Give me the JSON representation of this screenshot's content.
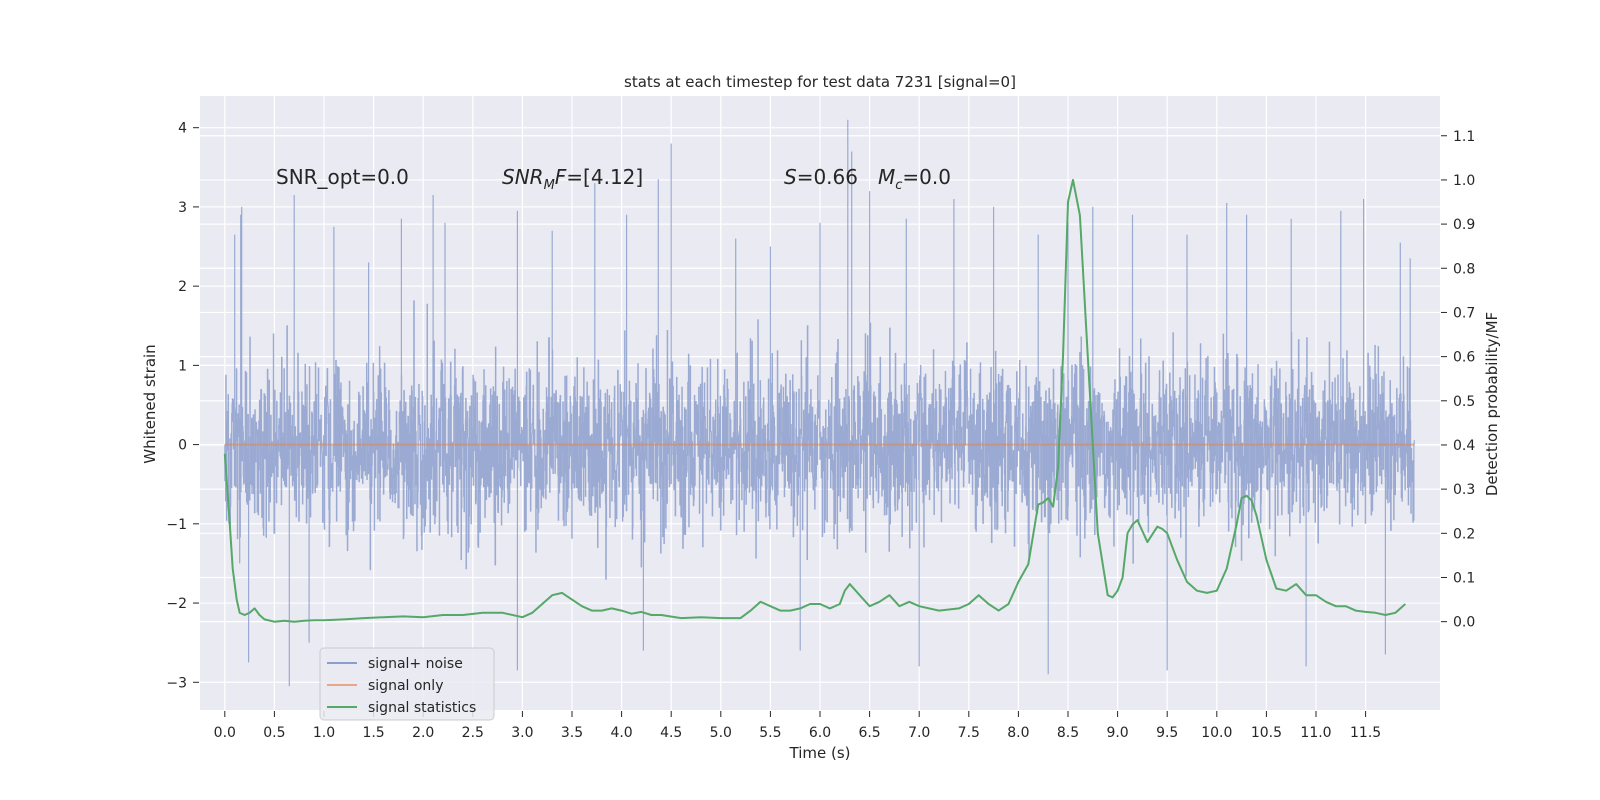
{
  "chart_data": {
    "type": "line",
    "title": "stats at each timestep for test data 7231 [signal=0]",
    "xlabel": "Time (s)",
    "ylabel": "Whitened strain",
    "y2label": "Detection probability/MF",
    "xlim": [
      -0.25,
      12.25
    ],
    "ylim": [
      -3.35,
      4.4
    ],
    "y2lim": [
      -0.2,
      1.19
    ],
    "x_ticks": [
      "0.0",
      "0.5",
      "1.0",
      "1.5",
      "2.0",
      "2.5",
      "3.0",
      "3.5",
      "4.0",
      "4.5",
      "5.0",
      "5.5",
      "6.0",
      "6.5",
      "7.0",
      "7.5",
      "8.0",
      "8.5",
      "9.0",
      "9.5",
      "10.0",
      "10.5",
      "11.0",
      "11.5"
    ],
    "y_ticks": [
      "4",
      "3",
      "2",
      "1",
      "0",
      "−1",
      "−2",
      "−3"
    ],
    "y2_ticks": [
      "1.1",
      "1.0",
      "0.9",
      "0.8",
      "0.7",
      "0.6",
      "0.5",
      "0.4",
      "0.3",
      "0.2",
      "0.1",
      "0.0"
    ],
    "grid": true,
    "legend_position": "bottom-left",
    "annotations": {
      "snr_opt": "SNR_opt=0.0",
      "snr_mf_base": "SNR",
      "snr_mf_sub": "M",
      "snr_mf_tail": "F=[4.12]",
      "s_base": "S",
      "s_tail": "=0.66",
      "mc_base": "M",
      "mc_sub": "c",
      "mc_tail": "=0.0"
    },
    "noise_series": {
      "name": "signal+ noise",
      "color": "#8c9fcc",
      "x_range": [
        0,
        11.99
      ],
      "typical_range": [
        -1.6,
        1.6
      ],
      "peaks": [
        {
          "x": 0.1,
          "y": 2.65
        },
        {
          "x": 0.15,
          "y": -1.5
        },
        {
          "x": 0.16,
          "y": 2.9
        },
        {
          "x": 0.17,
          "y": 3.0
        },
        {
          "x": 0.24,
          "y": -2.75
        },
        {
          "x": 0.65,
          "y": -3.05
        },
        {
          "x": 0.7,
          "y": 3.15
        },
        {
          "x": 0.85,
          "y": -2.5
        },
        {
          "x": 1.1,
          "y": 2.75
        },
        {
          "x": 1.45,
          "y": 2.3
        },
        {
          "x": 1.78,
          "y": 2.85
        },
        {
          "x": 2.1,
          "y": 3.15
        },
        {
          "x": 2.22,
          "y": 2.8
        },
        {
          "x": 2.95,
          "y": 2.95
        },
        {
          "x": 2.95,
          "y": -2.85
        },
        {
          "x": 3.3,
          "y": 2.7
        },
        {
          "x": 3.73,
          "y": 3.3
        },
        {
          "x": 4.05,
          "y": 2.9
        },
        {
          "x": 4.22,
          "y": -2.6
        },
        {
          "x": 4.37,
          "y": 3.35
        },
        {
          "x": 4.5,
          "y": 3.8
        },
        {
          "x": 5.15,
          "y": 2.6
        },
        {
          "x": 5.5,
          "y": 2.5
        },
        {
          "x": 5.8,
          "y": -2.6
        },
        {
          "x": 6.0,
          "y": 2.8
        },
        {
          "x": 6.28,
          "y": 4.1
        },
        {
          "x": 6.32,
          "y": 3.7
        },
        {
          "x": 6.5,
          "y": 3.2
        },
        {
          "x": 6.87,
          "y": 2.85
        },
        {
          "x": 7.0,
          "y": -2.8
        },
        {
          "x": 7.35,
          "y": 3.1
        },
        {
          "x": 7.75,
          "y": 3.0
        },
        {
          "x": 8.2,
          "y": 2.65
        },
        {
          "x": 8.3,
          "y": -2.9
        },
        {
          "x": 8.5,
          "y": 2.8
        },
        {
          "x": 8.75,
          "y": 3.0
        },
        {
          "x": 9.15,
          "y": 2.9
        },
        {
          "x": 9.5,
          "y": -2.85
        },
        {
          "x": 9.7,
          "y": 2.65
        },
        {
          "x": 10.1,
          "y": 3.05
        },
        {
          "x": 10.3,
          "y": 2.9
        },
        {
          "x": 10.75,
          "y": 2.85
        },
        {
          "x": 10.9,
          "y": -2.8
        },
        {
          "x": 11.25,
          "y": 2.95
        },
        {
          "x": 11.48,
          "y": 3.1
        },
        {
          "x": 11.7,
          "y": -2.65
        },
        {
          "x": 11.85,
          "y": 2.55
        },
        {
          "x": 11.95,
          "y": 2.35
        }
      ]
    },
    "signal_only": {
      "name": "signal only",
      "color": "#dd8452",
      "x": [
        0,
        11.99
      ],
      "y": [
        0,
        0
      ]
    },
    "signal_statistics": {
      "name": "signal statistics",
      "color": "#55a868",
      "x": [
        0.0,
        0.05,
        0.08,
        0.12,
        0.15,
        0.2,
        0.25,
        0.3,
        0.35,
        0.4,
        0.5,
        0.6,
        0.7,
        0.8,
        0.9,
        1.0,
        1.2,
        1.4,
        1.6,
        1.8,
        2.0,
        2.2,
        2.4,
        2.6,
        2.8,
        3.0,
        3.1,
        3.2,
        3.3,
        3.4,
        3.5,
        3.6,
        3.7,
        3.8,
        3.9,
        4.0,
        4.1,
        4.2,
        4.3,
        4.4,
        4.6,
        4.8,
        5.0,
        5.2,
        5.3,
        5.4,
        5.5,
        5.6,
        5.7,
        5.8,
        5.9,
        6.0,
        6.1,
        6.2,
        6.25,
        6.3,
        6.4,
        6.5,
        6.6,
        6.7,
        6.8,
        6.9,
        7.0,
        7.2,
        7.4,
        7.5,
        7.6,
        7.7,
        7.8,
        7.9,
        8.0,
        8.1,
        8.2,
        8.25,
        8.3,
        8.35,
        8.4,
        8.45,
        8.5,
        8.55,
        8.62,
        8.7,
        8.8,
        8.9,
        8.95,
        9.0,
        9.05,
        9.1,
        9.15,
        9.2,
        9.3,
        9.4,
        9.45,
        9.5,
        9.6,
        9.7,
        9.8,
        9.9,
        10.0,
        10.1,
        10.2,
        10.25,
        10.3,
        10.35,
        10.4,
        10.5,
        10.6,
        10.7,
        10.8,
        10.9,
        11.0,
        11.1,
        11.2,
        11.3,
        11.4,
        11.5,
        11.6,
        11.7,
        11.8,
        11.9
      ],
      "y": [
        0.38,
        0.22,
        0.12,
        0.05,
        0.02,
        0.015,
        0.02,
        0.03,
        0.015,
        0.005,
        0.0,
        0.002,
        0.0,
        0.002,
        0.003,
        0.003,
        0.005,
        0.008,
        0.01,
        0.012,
        0.01,
        0.015,
        0.015,
        0.02,
        0.02,
        0.01,
        0.02,
        0.04,
        0.06,
        0.065,
        0.05,
        0.035,
        0.025,
        0.025,
        0.03,
        0.025,
        0.018,
        0.022,
        0.015,
        0.015,
        0.008,
        0.01,
        0.008,
        0.008,
        0.025,
        0.045,
        0.035,
        0.025,
        0.025,
        0.03,
        0.04,
        0.04,
        0.03,
        0.04,
        0.07,
        0.085,
        0.06,
        0.035,
        0.045,
        0.06,
        0.035,
        0.045,
        0.035,
        0.025,
        0.03,
        0.04,
        0.06,
        0.04,
        0.025,
        0.04,
        0.09,
        0.13,
        0.265,
        0.27,
        0.28,
        0.26,
        0.35,
        0.6,
        0.95,
        1.0,
        0.92,
        0.6,
        0.2,
        0.06,
        0.055,
        0.07,
        0.1,
        0.2,
        0.22,
        0.23,
        0.18,
        0.215,
        0.21,
        0.2,
        0.14,
        0.09,
        0.07,
        0.065,
        0.07,
        0.12,
        0.22,
        0.28,
        0.285,
        0.275,
        0.24,
        0.14,
        0.075,
        0.07,
        0.085,
        0.06,
        0.06,
        0.045,
        0.035,
        0.035,
        0.025,
        0.022,
        0.02,
        0.015,
        0.02,
        0.04
      ]
    }
  }
}
